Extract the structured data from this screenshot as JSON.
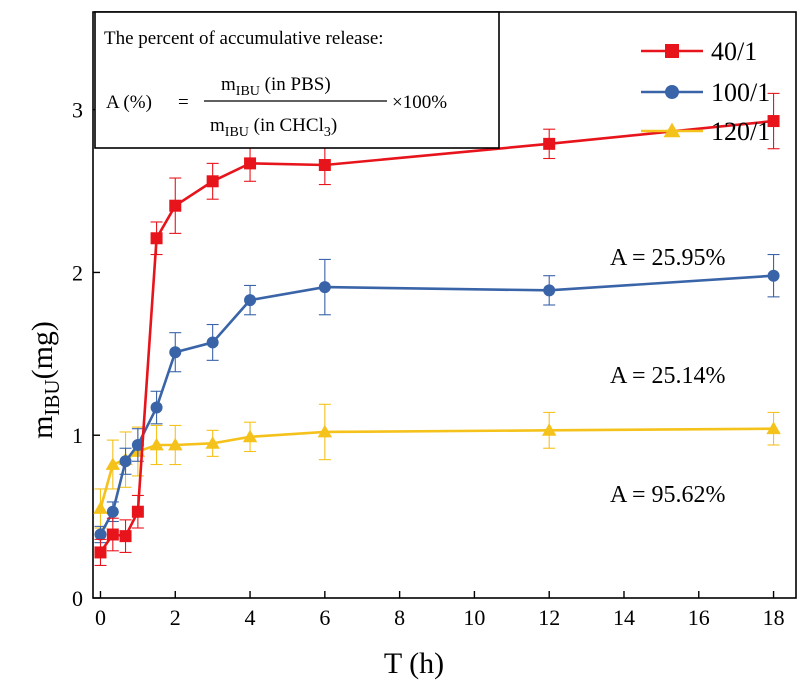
{
  "chart_data": {
    "type": "line",
    "xlabel": "T (h)",
    "ylabel": "m_IBU(mg)",
    "xlim": [
      -0.2,
      18.6
    ],
    "ylim": [
      0,
      3.6
    ],
    "x_ticks": [
      0,
      2,
      4,
      6,
      8,
      10,
      12,
      14,
      16,
      18
    ],
    "y_ticks": [
      0,
      1,
      2,
      3
    ],
    "grid": false,
    "legend_position": "top-right",
    "formula_box": {
      "title": "The percent of accumulative release:",
      "lhs": "A (%)",
      "equals": "=",
      "numerator_main": "m",
      "numerator_sub": "IBU",
      "numerator_tail": " (in PBS)",
      "denominator_main": "m",
      "denominator_sub": "IBU",
      "denominator_tail": " (in CHCl",
      "denominator_sub2": "3",
      "denominator_close": ")",
      "multiplier": "×100%"
    },
    "series": [
      {
        "name": "40/1",
        "color": "#e8141c",
        "marker": "square",
        "x": [
          0,
          0.33,
          0.67,
          1,
          1.5,
          2,
          3,
          4,
          6,
          12,
          18
        ],
        "y": [
          0.28,
          0.39,
          0.38,
          0.53,
          2.21,
          2.41,
          2.56,
          2.67,
          2.66,
          2.79,
          2.93
        ],
        "err": [
          0.08,
          0.1,
          0.1,
          0.1,
          0.1,
          0.17,
          0.11,
          0.11,
          0.12,
          0.09,
          0.17
        ],
        "annotation": "A = 25.95%"
      },
      {
        "name": "100/1",
        "color": "#3a64a8",
        "marker": "circle",
        "x": [
          0,
          0.33,
          0.67,
          1,
          1.5,
          2,
          3,
          4,
          6,
          12,
          18
        ],
        "y": [
          0.39,
          0.53,
          0.84,
          0.94,
          1.17,
          1.51,
          1.57,
          1.83,
          1.91,
          1.89,
          1.98
        ],
        "err": [
          0.05,
          0.06,
          0.08,
          0.1,
          0.1,
          0.12,
          0.11,
          0.09,
          0.17,
          0.09,
          0.13
        ],
        "annotation": "A = 25.14%"
      },
      {
        "name": "120/1",
        "color": "#f5c21b",
        "marker": "triangle",
        "x": [
          0,
          0.33,
          0.67,
          1,
          1.5,
          2,
          3,
          4,
          6,
          12,
          18
        ],
        "y": [
          0.55,
          0.82,
          0.85,
          0.9,
          0.94,
          0.94,
          0.95,
          0.99,
          1.02,
          1.03,
          1.04
        ],
        "err": [
          0.12,
          0.15,
          0.17,
          0.15,
          0.12,
          0.12,
          0.08,
          0.09,
          0.17,
          0.11,
          0.1
        ],
        "annotation": "A = 95.62%"
      }
    ]
  }
}
